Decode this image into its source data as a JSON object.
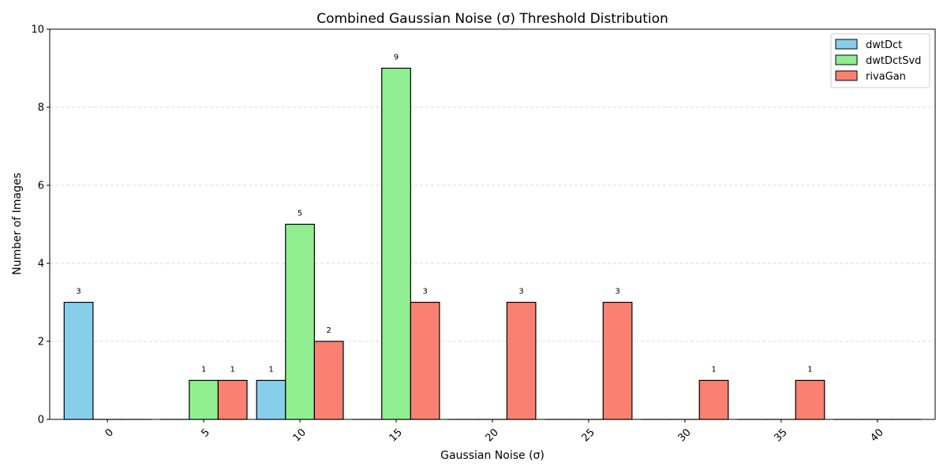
{
  "chart_data": {
    "type": "bar",
    "title": "Combined Gaussian Noise (σ) Threshold Distribution",
    "xlabel": "Gaussian Noise (σ)",
    "ylabel": "Number of Images",
    "categories": [
      "0",
      "5",
      "10",
      "15",
      "20",
      "25",
      "30",
      "35",
      "40"
    ],
    "series": [
      {
        "name": "dwtDct",
        "color": "#87CEEB",
        "values": [
          3,
          0,
          1,
          0,
          0,
          0,
          0,
          0,
          0
        ]
      },
      {
        "name": "dwtDctSvd",
        "color": "#90EE90",
        "values": [
          0,
          1,
          5,
          9,
          0,
          0,
          0,
          0,
          0
        ]
      },
      {
        "name": "rivaGan",
        "color": "#FA8072",
        "values": [
          0,
          1,
          2,
          3,
          3,
          3,
          1,
          1,
          0
        ]
      }
    ],
    "ylim": [
      0,
      10
    ],
    "yticks": [
      0,
      2,
      4,
      6,
      8,
      10
    ],
    "grid": "y-dashed",
    "legend": "top-right",
    "xtick_rotation": 45,
    "bar_edge_color": "#000000"
  }
}
